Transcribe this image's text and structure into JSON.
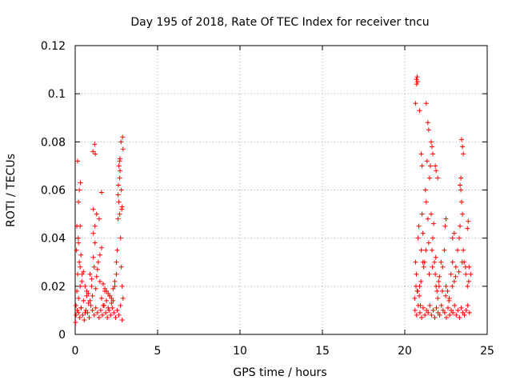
{
  "chart_data": {
    "type": "scatter",
    "title": "Day 195 of 2018, Rate Of TEC Index for receiver tncu",
    "xlabel": "GPS time / hours",
    "ylabel": "ROTI / TECUs",
    "xlim": [
      0,
      25
    ],
    "ylim": [
      0,
      0.12
    ],
    "xticks": [
      "0",
      "5",
      "10",
      "15",
      "20",
      "25"
    ],
    "yticks": [
      "0",
      "0.02",
      "0.04",
      "0.06",
      "0.08",
      "0.1",
      "0.12"
    ],
    "grid": true,
    "marker": "+",
    "color": "#ff0000",
    "series": [
      {
        "x": [
          0.05,
          0.1,
          0.15,
          0.2,
          0.25,
          0.3,
          0.35,
          0.4,
          0.5,
          0.6,
          0.7,
          0.8,
          0.9,
          1.0,
          1.05,
          1.1,
          1.15,
          1.2,
          1.25,
          1.3,
          1.4,
          1.5,
          1.6,
          1.7,
          1.8,
          1.9,
          2.0,
          2.1,
          2.2,
          2.3,
          2.4,
          2.5,
          2.55,
          2.6,
          2.65,
          2.7,
          2.75,
          2.8,
          2.85,
          2.9,
          0.05,
          0.12,
          0.2,
          0.28,
          0.36,
          0.45,
          0.55,
          0.65,
          0.75,
          0.85,
          0.95,
          1.05,
          1.15,
          1.25,
          1.35,
          1.45,
          1.55,
          1.65,
          1.75,
          1.85,
          1.95,
          2.05,
          2.15,
          2.25,
          2.35,
          2.45,
          2.55,
          2.65,
          2.75,
          2.85,
          0.08,
          0.18,
          0.3,
          0.42,
          0.6,
          0.8,
          1.0,
          1.2,
          1.35,
          1.5,
          1.7,
          1.9,
          2.1,
          2.3,
          2.5,
          2.62,
          2.72,
          2.82,
          0.1,
          0.2,
          0.35,
          0.5,
          0.7,
          0.9,
          1.1,
          1.3,
          1.45,
          1.6,
          1.8,
          2.0,
          2.2,
          2.4,
          2.6,
          2.7,
          2.8,
          0.02,
          0.15,
          0.25,
          0.32,
          1.08,
          1.18,
          1.22,
          1.6,
          2.65,
          2.72,
          2.78,
          2.88,
          2.9,
          0.2,
          0.3,
          1.1,
          2.7,
          2.85
        ],
        "y": [
          0.012,
          0.018,
          0.025,
          0.015,
          0.03,
          0.02,
          0.011,
          0.022,
          0.014,
          0.009,
          0.018,
          0.013,
          0.025,
          0.02,
          0.016,
          0.032,
          0.028,
          0.045,
          0.019,
          0.024,
          0.03,
          0.022,
          0.015,
          0.012,
          0.018,
          0.014,
          0.011,
          0.016,
          0.013,
          0.019,
          0.022,
          0.025,
          0.035,
          0.048,
          0.055,
          0.05,
          0.04,
          0.028,
          0.02,
          0.015,
          0.008,
          0.01,
          0.009,
          0.007,
          0.011,
          0.008,
          0.006,
          0.01,
          0.009,
          0.007,
          0.012,
          0.01,
          0.008,
          0.011,
          0.009,
          0.007,
          0.01,
          0.008,
          0.012,
          0.009,
          0.007,
          0.01,
          0.008,
          0.011,
          0.009,
          0.007,
          0.01,
          0.008,
          0.012,
          0.006,
          0.035,
          0.04,
          0.028,
          0.025,
          0.02,
          0.017,
          0.023,
          0.038,
          0.027,
          0.033,
          0.021,
          0.018,
          0.016,
          0.014,
          0.03,
          0.062,
          0.068,
          0.052,
          0.045,
          0.055,
          0.033,
          0.026,
          0.016,
          0.014,
          0.042,
          0.05,
          0.048,
          0.036,
          0.019,
          0.017,
          0.015,
          0.02,
          0.058,
          0.072,
          0.06,
          0.005,
          0.072,
          0.06,
          0.063,
          0.076,
          0.079,
          0.075,
          0.059,
          0.07,
          0.073,
          0.08,
          0.082,
          0.077,
          0.038,
          0.045,
          0.052,
          0.065,
          0.053
        ]
      },
      {
        "x": [
          20.6,
          20.65,
          20.7,
          20.75,
          20.8,
          20.85,
          20.9,
          20.95,
          21.0,
          21.05,
          21.1,
          21.15,
          21.2,
          21.25,
          21.3,
          21.35,
          21.4,
          21.45,
          21.5,
          21.55,
          21.6,
          21.65,
          21.7,
          21.75,
          21.8,
          21.85,
          21.9,
          21.95,
          22.0,
          22.05,
          22.1,
          22.2,
          22.3,
          22.4,
          22.5,
          22.6,
          22.7,
          22.8,
          22.9,
          23.0,
          23.1,
          23.2,
          23.3,
          23.35,
          23.4,
          23.45,
          23.5,
          23.55,
          23.6,
          23.7,
          23.8,
          23.9,
          24.0,
          20.62,
          20.72,
          20.82,
          20.92,
          21.02,
          21.12,
          21.22,
          21.32,
          21.42,
          21.52,
          21.62,
          21.72,
          21.82,
          21.92,
          22.02,
          22.12,
          22.22,
          22.32,
          22.42,
          22.52,
          22.62,
          22.72,
          22.82,
          22.92,
          23.02,
          23.12,
          23.22,
          23.32,
          23.42,
          23.52,
          23.62,
          23.72,
          23.82,
          23.92,
          20.68,
          20.78,
          20.88,
          20.98,
          21.1,
          21.28,
          21.48,
          21.68,
          21.88,
          22.08,
          22.28,
          22.48,
          22.68,
          22.88,
          23.08,
          23.28,
          23.48,
          23.68,
          23.88,
          20.7,
          20.72,
          20.75,
          20.78,
          20.65,
          20.9,
          21.0,
          21.05,
          21.3,
          21.4,
          21.45,
          21.6,
          21.65,
          21.7,
          21.85,
          21.9,
          22.0,
          23.45,
          23.5,
          23.55,
          23.4,
          23.35,
          22.45,
          22.5,
          22.9,
          23.0,
          23.8,
          23.85
        ],
        "y": [
          0.015,
          0.03,
          0.025,
          0.018,
          0.04,
          0.045,
          0.02,
          0.012,
          0.035,
          0.05,
          0.042,
          0.028,
          0.03,
          0.06,
          0.055,
          0.072,
          0.048,
          0.038,
          0.065,
          0.07,
          0.05,
          0.035,
          0.04,
          0.046,
          0.03,
          0.025,
          0.02,
          0.018,
          0.015,
          0.022,
          0.024,
          0.03,
          0.028,
          0.035,
          0.02,
          0.018,
          0.015,
          0.025,
          0.03,
          0.022,
          0.028,
          0.035,
          0.04,
          0.045,
          0.06,
          0.055,
          0.05,
          0.035,
          0.03,
          0.025,
          0.02,
          0.028,
          0.025,
          0.01,
          0.008,
          0.012,
          0.009,
          0.007,
          0.011,
          0.008,
          0.01,
          0.009,
          0.012,
          0.008,
          0.01,
          0.007,
          0.011,
          0.009,
          0.008,
          0.012,
          0.01,
          0.009,
          0.007,
          0.011,
          0.008,
          0.01,
          0.009,
          0.012,
          0.008,
          0.01,
          0.007,
          0.011,
          0.009,
          0.008,
          0.01,
          0.012,
          0.009,
          0.02,
          0.018,
          0.016,
          0.022,
          0.03,
          0.035,
          0.025,
          0.028,
          0.032,
          0.02,
          0.018,
          0.016,
          0.014,
          0.02,
          0.024,
          0.026,
          0.03,
          0.028,
          0.022,
          0.106,
          0.104,
          0.107,
          0.105,
          0.096,
          0.093,
          0.075,
          0.07,
          0.096,
          0.088,
          0.085,
          0.08,
          0.078,
          0.075,
          0.07,
          0.068,
          0.065,
          0.081,
          0.078,
          0.075,
          0.065,
          0.062,
          0.045,
          0.048,
          0.04,
          0.042,
          0.044,
          0.047
        ]
      }
    ]
  }
}
